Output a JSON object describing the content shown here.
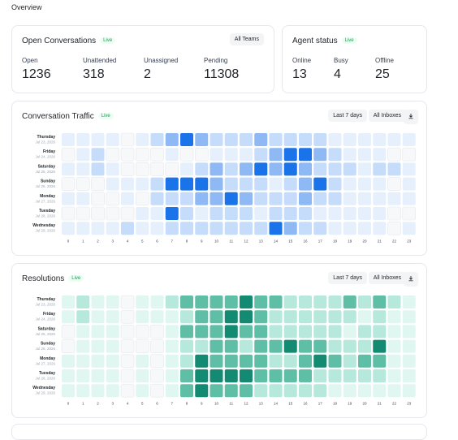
{
  "header": {
    "title": "Overview"
  },
  "open_conversations": {
    "title": "Open Conversations",
    "badge": "Live",
    "button": "All Teams",
    "stats": [
      {
        "label": "Open",
        "value": 1236
      },
      {
        "label": "Unattended",
        "value": 318
      },
      {
        "label": "Unassigned",
        "value": 2
      },
      {
        "label": "Pending",
        "value": 11308
      }
    ]
  },
  "agent_status": {
    "title": "Agent status",
    "badge": "Live",
    "stats": [
      {
        "label": "Online",
        "value": 13
      },
      {
        "label": "Busy",
        "value": 4
      },
      {
        "label": "Offline",
        "value": 25
      }
    ]
  },
  "heatmaps": [
    {
      "title": "Conversation Traffic",
      "badge": "Live",
      "buttons": [
        "Last 7 days",
        "All Inboxes"
      ],
      "colors": [
        "#f7f8fa",
        "#e6f0fd",
        "#c5dcfb",
        "#8fb9f4",
        "#1a73e8"
      ],
      "rows": [
        {
          "day": "Thursday",
          "date": "Jul 23, 2026"
        },
        {
          "day": "Friday",
          "date": "Jul 24, 2026"
        },
        {
          "day": "Saturday",
          "date": "Jul 25, 2026"
        },
        {
          "day": "Sunday",
          "date": "Jul 26, 2026"
        },
        {
          "day": "Monday",
          "date": "Jul 27, 2026"
        },
        {
          "day": "Tuesday",
          "date": "Jul 28, 2026"
        },
        {
          "day": "Wednesday",
          "date": "Jul 29, 2026"
        }
      ],
      "hours": [
        0,
        1,
        2,
        3,
        4,
        5,
        6,
        7,
        8,
        9,
        10,
        11,
        12,
        13,
        14,
        15,
        16,
        17,
        18,
        19,
        20,
        21,
        22,
        23
      ],
      "levels": [
        [
          1,
          1,
          1,
          1,
          0,
          1,
          2,
          3,
          4,
          3,
          2,
          2,
          2,
          3,
          2,
          2,
          2,
          2,
          1,
          1,
          1,
          1,
          1,
          1
        ],
        [
          0,
          1,
          2,
          0,
          0,
          0,
          0,
          1,
          0,
          0,
          1,
          1,
          1,
          2,
          3,
          4,
          4,
          3,
          2,
          1,
          1,
          1,
          0,
          0
        ],
        [
          1,
          1,
          2,
          1,
          0,
          0,
          0,
          0,
          1,
          2,
          3,
          2,
          3,
          4,
          3,
          4,
          3,
          2,
          2,
          2,
          1,
          2,
          2,
          1
        ],
        [
          0,
          0,
          0,
          1,
          1,
          1,
          2,
          4,
          4,
          4,
          3,
          2,
          2,
          2,
          1,
          2,
          3,
          4,
          2,
          1,
          1,
          1,
          0,
          1
        ],
        [
          1,
          1,
          0,
          0,
          1,
          0,
          2,
          2,
          2,
          3,
          3,
          4,
          3,
          2,
          2,
          2,
          3,
          2,
          2,
          1,
          1,
          1,
          1,
          1
        ],
        [
          0,
          0,
          0,
          0,
          0,
          1,
          1,
          4,
          2,
          1,
          2,
          2,
          2,
          1,
          2,
          2,
          2,
          1,
          1,
          1,
          1,
          1,
          0,
          0
        ],
        [
          1,
          1,
          1,
          1,
          2,
          1,
          1,
          2,
          2,
          2,
          2,
          2,
          2,
          2,
          4,
          3,
          2,
          2,
          1,
          1,
          1,
          1,
          0,
          1
        ]
      ]
    },
    {
      "title": "Resolutions",
      "badge": "Live",
      "buttons": [
        "Last 7 days",
        "All Inboxes"
      ],
      "colors": [
        "#f7f8fa",
        "#e0f6f1",
        "#b6e8dc",
        "#5fbfa6",
        "#138a72"
      ],
      "rows": [
        {
          "day": "Thursday",
          "date": "Jul 23, 2026"
        },
        {
          "day": "Friday",
          "date": "Jul 24, 2026"
        },
        {
          "day": "Saturday",
          "date": "Jul 25, 2026"
        },
        {
          "day": "Sunday",
          "date": "Jul 26, 2026"
        },
        {
          "day": "Monday",
          "date": "Jul 27, 2026"
        },
        {
          "day": "Tuesday",
          "date": "Jul 28, 2026"
        },
        {
          "day": "Wednesday",
          "date": "Jul 29, 2026"
        }
      ],
      "hours": [
        0,
        1,
        2,
        3,
        4,
        5,
        6,
        7,
        8,
        9,
        10,
        11,
        12,
        13,
        14,
        15,
        16,
        17,
        18,
        19,
        20,
        21,
        22,
        23
      ],
      "levels": [
        [
          1,
          2,
          1,
          1,
          0,
          1,
          1,
          2,
          3,
          3,
          3,
          3,
          4,
          3,
          3,
          2,
          2,
          2,
          2,
          3,
          2,
          3,
          2,
          1
        ],
        [
          1,
          2,
          1,
          1,
          0,
          1,
          1,
          1,
          2,
          3,
          3,
          4,
          4,
          3,
          2,
          2,
          2,
          2,
          2,
          2,
          1,
          2,
          1,
          1
        ],
        [
          0,
          1,
          1,
          1,
          0,
          0,
          0,
          1,
          3,
          3,
          3,
          4,
          3,
          3,
          2,
          2,
          2,
          2,
          2,
          1,
          2,
          2,
          1,
          1
        ],
        [
          0,
          1,
          1,
          1,
          0,
          0,
          0,
          1,
          2,
          2,
          3,
          3,
          2,
          3,
          3,
          4,
          3,
          3,
          2,
          2,
          2,
          4,
          1,
          1
        ],
        [
          1,
          1,
          1,
          1,
          0,
          1,
          0,
          1,
          2,
          4,
          3,
          3,
          3,
          3,
          2,
          2,
          3,
          4,
          3,
          2,
          3,
          3,
          1,
          1
        ],
        [
          1,
          1,
          1,
          1,
          0,
          1,
          0,
          1,
          3,
          4,
          4,
          4,
          4,
          3,
          3,
          3,
          3,
          2,
          2,
          2,
          2,
          2,
          1,
          1
        ],
        [
          1,
          1,
          1,
          1,
          0,
          1,
          0,
          1,
          3,
          4,
          3,
          3,
          3,
          2,
          2,
          2,
          2,
          2,
          1,
          1,
          1,
          1,
          1,
          1
        ]
      ]
    }
  ]
}
